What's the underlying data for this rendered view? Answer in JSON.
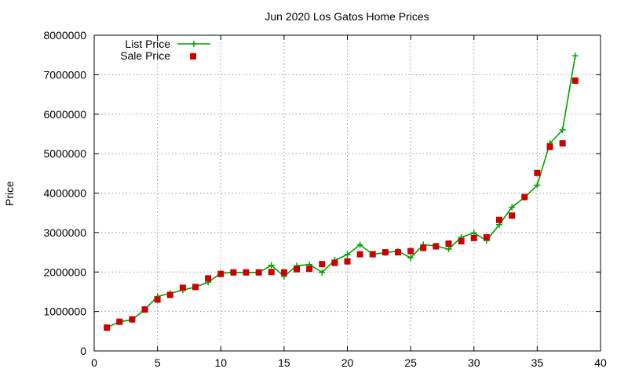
{
  "chart_data": {
    "type": "line",
    "title": "Jun 2020 Los Gatos Home Prices",
    "xlabel": "",
    "ylabel": "Price",
    "xlim": [
      0,
      40
    ],
    "ylim": [
      0,
      8000000
    ],
    "x_ticks": [
      "0",
      "5",
      "10",
      "15",
      "20",
      "25",
      "30",
      "35",
      "40"
    ],
    "y_ticks": [
      "0",
      "1000000",
      "2000000",
      "3000000",
      "4000000",
      "5000000",
      "6000000",
      "7000000",
      "8000000"
    ],
    "grid": true,
    "legend_position": "top-left",
    "x": [
      1,
      2,
      3,
      4,
      5,
      6,
      7,
      8,
      9,
      10,
      11,
      12,
      13,
      14,
      15,
      16,
      17,
      18,
      19,
      20,
      21,
      22,
      23,
      24,
      25,
      26,
      27,
      28,
      29,
      30,
      31,
      32,
      33,
      34,
      35,
      36,
      37,
      38
    ],
    "series": [
      {
        "name": "List Price",
        "style": "line-plus",
        "color": "#00a000",
        "values": [
          590000,
          740000,
          790000,
          1050000,
          1380000,
          1460000,
          1540000,
          1620000,
          1740000,
          1970000,
          1990000,
          1990000,
          1990000,
          2170000,
          1890000,
          2160000,
          2190000,
          1990000,
          2300000,
          2440000,
          2690000,
          2450000,
          2490000,
          2530000,
          2360000,
          2690000,
          2660000,
          2580000,
          2880000,
          2990000,
          2800000,
          3200000,
          3640000,
          3890000,
          4200000,
          5260000,
          5600000,
          7480000
        ]
      },
      {
        "name": "Sale Price",
        "style": "square-markers",
        "color": "#cc0000",
        "values": [
          590000,
          740000,
          800000,
          1050000,
          1300000,
          1420000,
          1600000,
          1620000,
          1840000,
          1950000,
          1990000,
          1990000,
          1990000,
          2000000,
          1990000,
          2070000,
          2080000,
          2200000,
          2230000,
          2270000,
          2450000,
          2450000,
          2500000,
          2500000,
          2530000,
          2610000,
          2650000,
          2720000,
          2780000,
          2860000,
          2880000,
          3320000,
          3430000,
          3900000,
          4510000,
          5170000,
          5260000,
          6850000
        ]
      }
    ]
  }
}
